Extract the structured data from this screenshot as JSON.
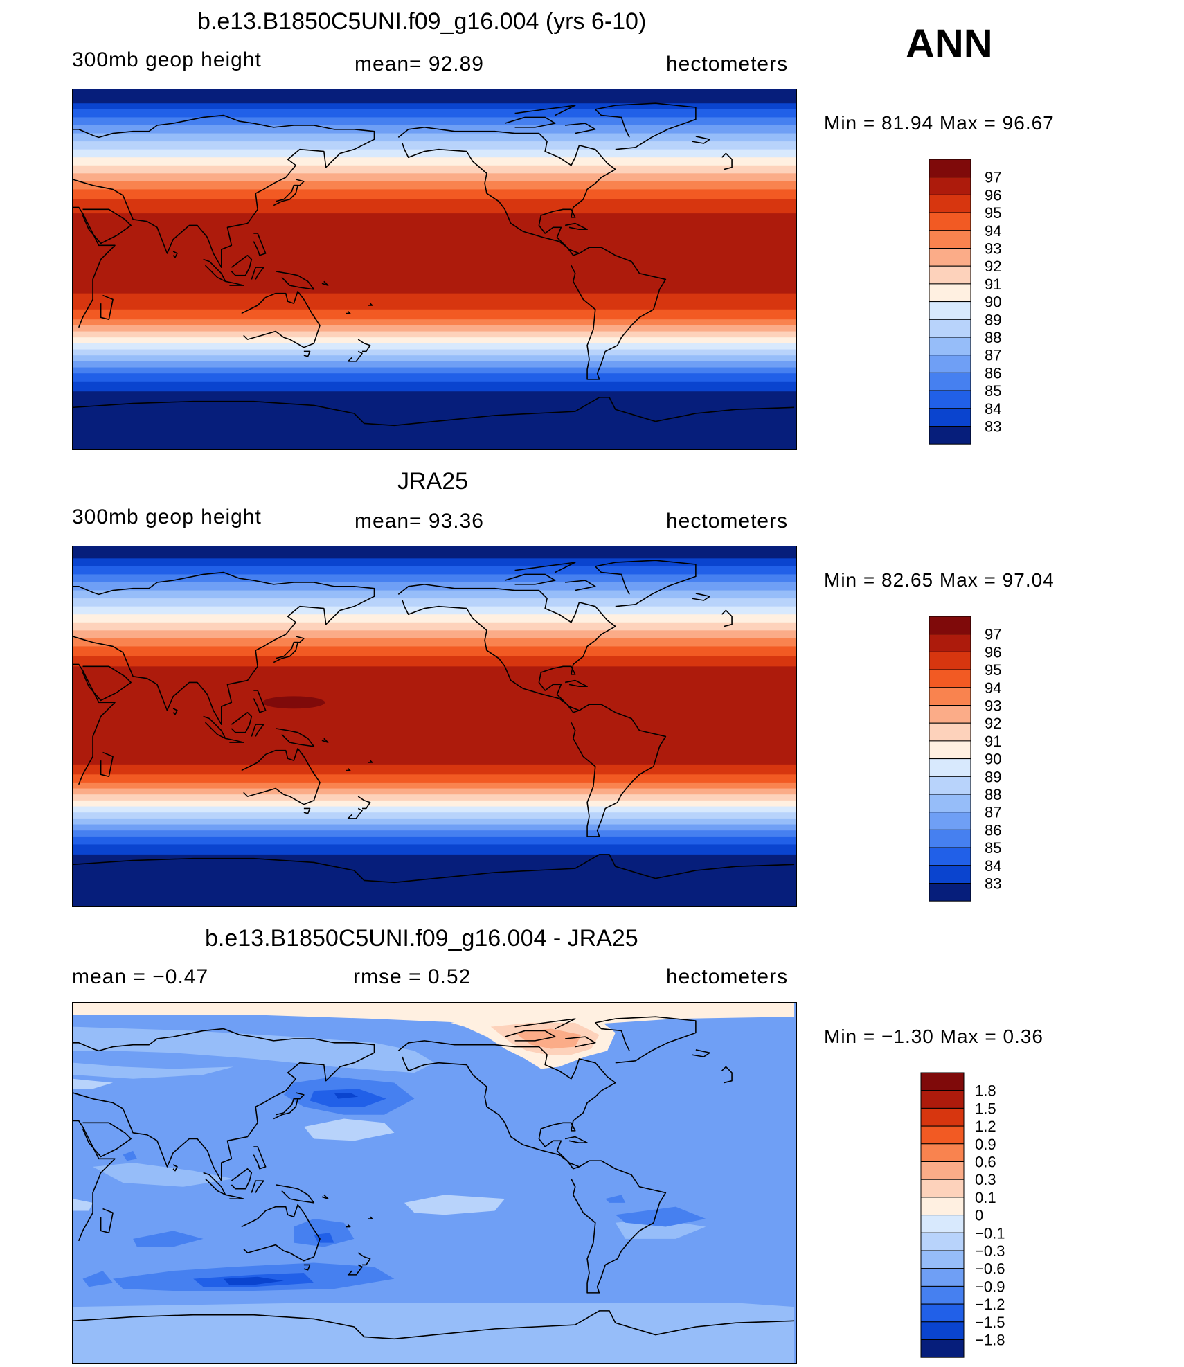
{
  "season": "ANN",
  "colors": {
    "reds": [
      "#7f0a0a",
      "#ad1b0c",
      "#d7360f",
      "#f25a23",
      "#f9834f",
      "#fbac88",
      "#fdd2bb",
      "#fff0e1"
    ],
    "blues": [
      "#d8e9fd",
      "#b8d3fb",
      "#96bdf9",
      "#6f9ff5",
      "#4680f0",
      "#2160e8",
      "#0a44cf",
      "#0a2fa6",
      "#061e7b"
    ],
    "coast": "#000000"
  },
  "panels": [
    {
      "id": "model",
      "title": "b.e13.B1850C5UNI.f09_g16.004 (yrs 6-10)",
      "variable": "300mb  geop  height",
      "stat": "mean=   92.89",
      "units": "hectometers",
      "min_max": "Min =    81.94  Max =    96.67",
      "colorbar_labels": [
        "97",
        "96",
        "95",
        "94",
        "93",
        "92",
        "91",
        "90",
        "89",
        "88",
        "87",
        "86",
        "85",
        "84",
        "83"
      ],
      "bands": [
        83,
        84,
        85,
        86,
        87,
        88,
        89,
        90,
        91,
        92,
        93,
        94,
        95,
        96,
        97
      ]
    },
    {
      "id": "obs",
      "title": "JRA25",
      "variable": "300mb  geop  height",
      "stat": "mean=   93.36",
      "units": "hectometers",
      "min_max": "Min =    82.65  Max =    97.04",
      "colorbar_labels": [
        "97",
        "96",
        "95",
        "94",
        "93",
        "92",
        "91",
        "90",
        "89",
        "88",
        "87",
        "86",
        "85",
        "84",
        "83"
      ],
      "bands": [
        83,
        84,
        85,
        86,
        87,
        88,
        89,
        90,
        91,
        92,
        93,
        94,
        95,
        96,
        97
      ]
    },
    {
      "id": "diff",
      "title": "b.e13.B1850C5UNI.f09_g16.004 - JRA25",
      "stat_left": "mean =    −0.47",
      "stat": "rmse =     0.52",
      "units": "hectometers",
      "min_max": "Min =    −1.30  Max =      0.36",
      "colorbar_labels": [
        "1.8",
        "1.5",
        "1.2",
        "0.9",
        "0.6",
        "0.3",
        "0.1",
        "0",
        "−0.1",
        "−0.3",
        "−0.6",
        "−0.9",
        "−1.2",
        "−1.5",
        "−1.8"
      ]
    }
  ]
}
